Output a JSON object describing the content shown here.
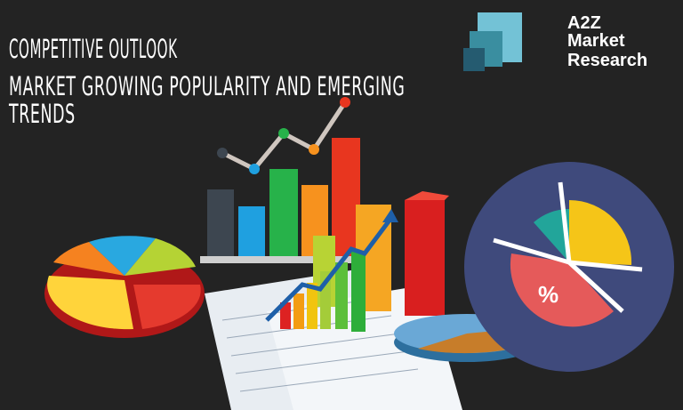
{
  "heading": {
    "kicker": "COMPETITIVE OUTLOOK",
    "title_line1": "MARKET GROWING POPULARITY AND EMERGING",
    "title_line2": "TRENDS"
  },
  "logo": {
    "line1": "A2Z",
    "line2": "Market",
    "line3": "Research",
    "colors": [
      "#73c2d6",
      "#3a8ea0",
      "#255b70"
    ]
  },
  "illustration": {
    "percent_symbol": "%"
  },
  "colors": {
    "background": "#232323",
    "text": "#ffffff"
  }
}
